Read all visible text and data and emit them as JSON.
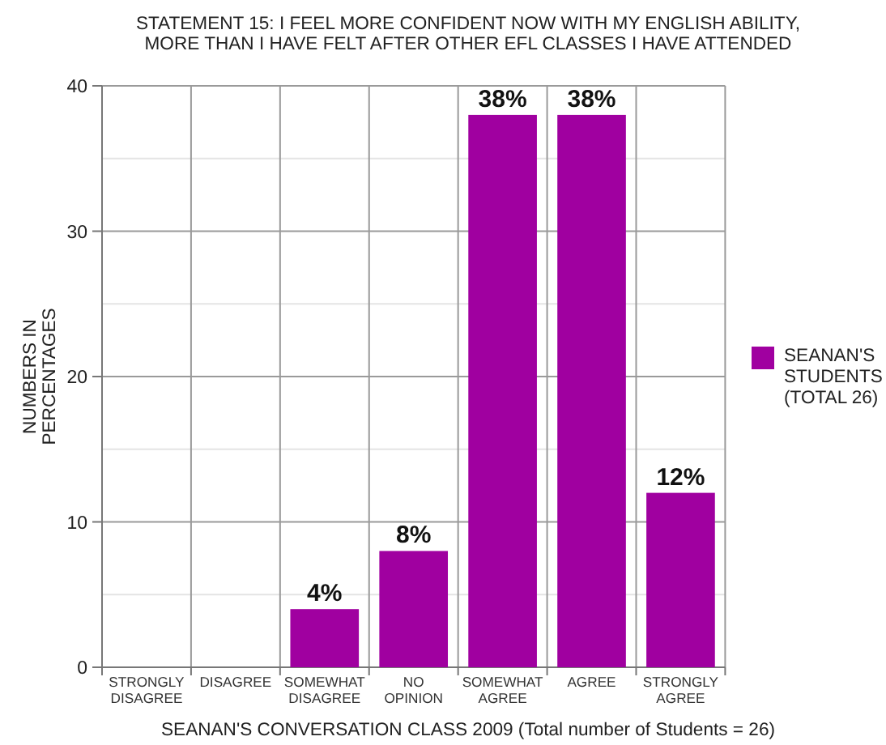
{
  "chart_data": {
    "type": "bar",
    "title": "STATEMENT 15: I FEEL MORE CONFIDENT NOW WITH MY ENGLISH ABILITY, MORE THAN I HAVE FELT AFTER OTHER EFL CLASSES I HAVE ATTENDED",
    "xlabel": "SEANAN'S CONVERSATION CLASS 2009 (Total number of Students = 26)",
    "ylabel": "NUMBERS IN PERCENTAGES",
    "categories": [
      "STRONGLY DISAGREE",
      "DISAGREE",
      "SOMEWHAT DISAGREE",
      "NO OPINION",
      "SOMEWHAT AGREE",
      "AGREE",
      "STRONGLY AGREE"
    ],
    "series": [
      {
        "name": "SEANAN'S STUDENTS (TOTAL 26)",
        "color": "#a000a0",
        "values": [
          0,
          0,
          4,
          8,
          38,
          38,
          12
        ],
        "value_labels": [
          null,
          null,
          "4%",
          "8%",
          "38%",
          "38%",
          "12%"
        ]
      }
    ],
    "ylim": [
      0,
      40
    ],
    "yticks": [
      0,
      {
        "value": 5,
        "label": null
      },
      10,
      {
        "value": 15,
        "label": null
      },
      20,
      {
        "value": 25,
        "label": null
      },
      30,
      {
        "value": 35,
        "label": null
      },
      40
    ],
    "grid": true,
    "legend": "right"
  }
}
